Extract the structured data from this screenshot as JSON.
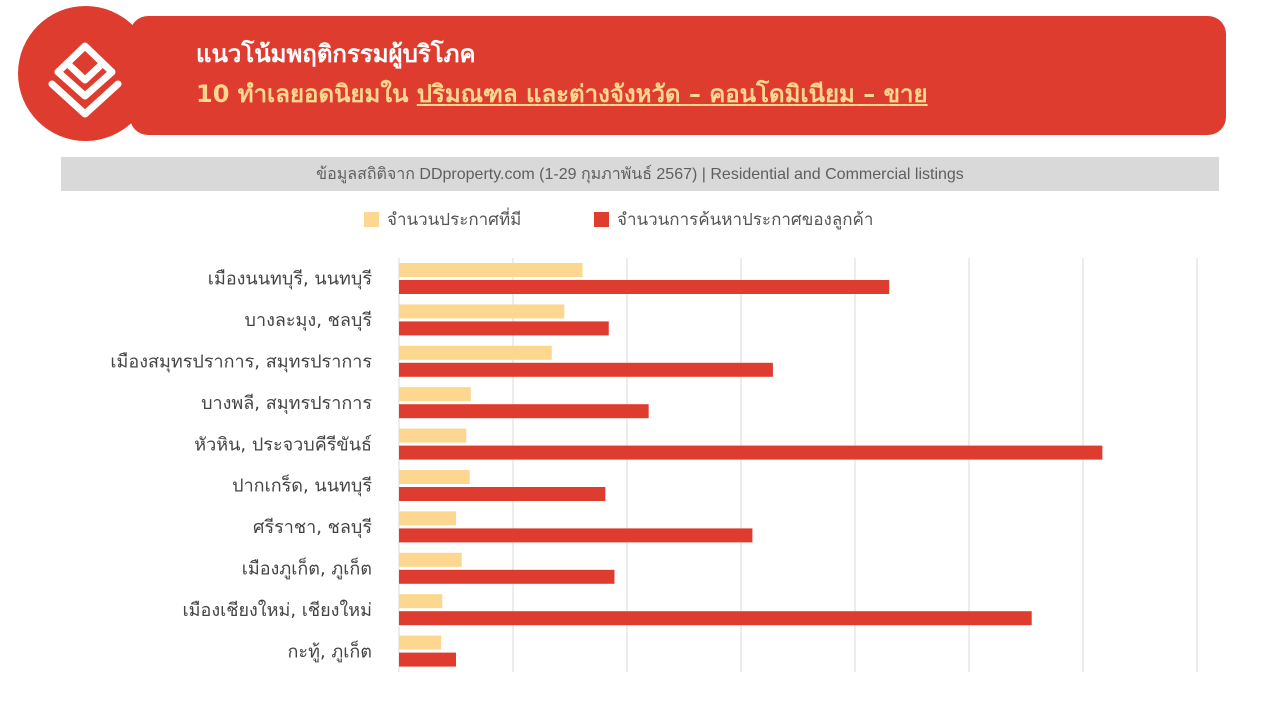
{
  "header": {
    "title_line1": "แนวโน้มพฤติกรรมผู้บริโภค",
    "title_line2_prefix": "10 ทำเลยอดนิยมใน ",
    "title_line2_underlined": "ปริมณฑล และต่างจังหวัด – คอนโดมิเนียม – ขาย"
  },
  "source_note": "ข้อมูลสถิติจาก DDproperty.com (1-29 กุมภาพันธ์ 2567) | Residential and Commercial listings",
  "logo": {
    "icon": "ddproperty-house-logo-icon"
  },
  "colors": {
    "brand_red": "#df3c30",
    "listings": "#fdd68f",
    "searches": "#df3c30",
    "grid": "#d9d9d9"
  },
  "chart_data": {
    "type": "bar",
    "orientation": "horizontal",
    "categories": [
      "เมืองนนทบุรี, นนทบุรี",
      "บางละมุง, ชลบุรี",
      "เมืองสมุทรปราการ, สมุทรปราการ",
      "บางพลี, สมุทรปราการ",
      "หัวหิน, ประจวบคีรีขันธ์",
      "ปากเกร็ด, นนทบุรี",
      "ศรีราชา, ชลบุรี",
      "เมืองภูเก็ต, ภูเก็ต",
      "เมืองเชียงใหม่, เชียงใหม่",
      "กะทู้, ภูเก็ต"
    ],
    "series": [
      {
        "name": "จำนวนประกาศที่มี",
        "color": "#fdd68f",
        "values": [
          1.61,
          1.45,
          1.34,
          0.63,
          0.59,
          0.62,
          0.5,
          0.55,
          0.38,
          0.37
        ]
      },
      {
        "name": "จำนวนการค้นหาประกาศของลูกค้า",
        "color": "#df3c30",
        "values": [
          4.3,
          1.84,
          3.28,
          2.19,
          6.17,
          1.81,
          3.1,
          1.89,
          5.55,
          0.5
        ]
      }
    ],
    "xlim": [
      0,
      7
    ],
    "grid": true,
    "x_tick_labels_visible": false,
    "legend_position": "top"
  }
}
